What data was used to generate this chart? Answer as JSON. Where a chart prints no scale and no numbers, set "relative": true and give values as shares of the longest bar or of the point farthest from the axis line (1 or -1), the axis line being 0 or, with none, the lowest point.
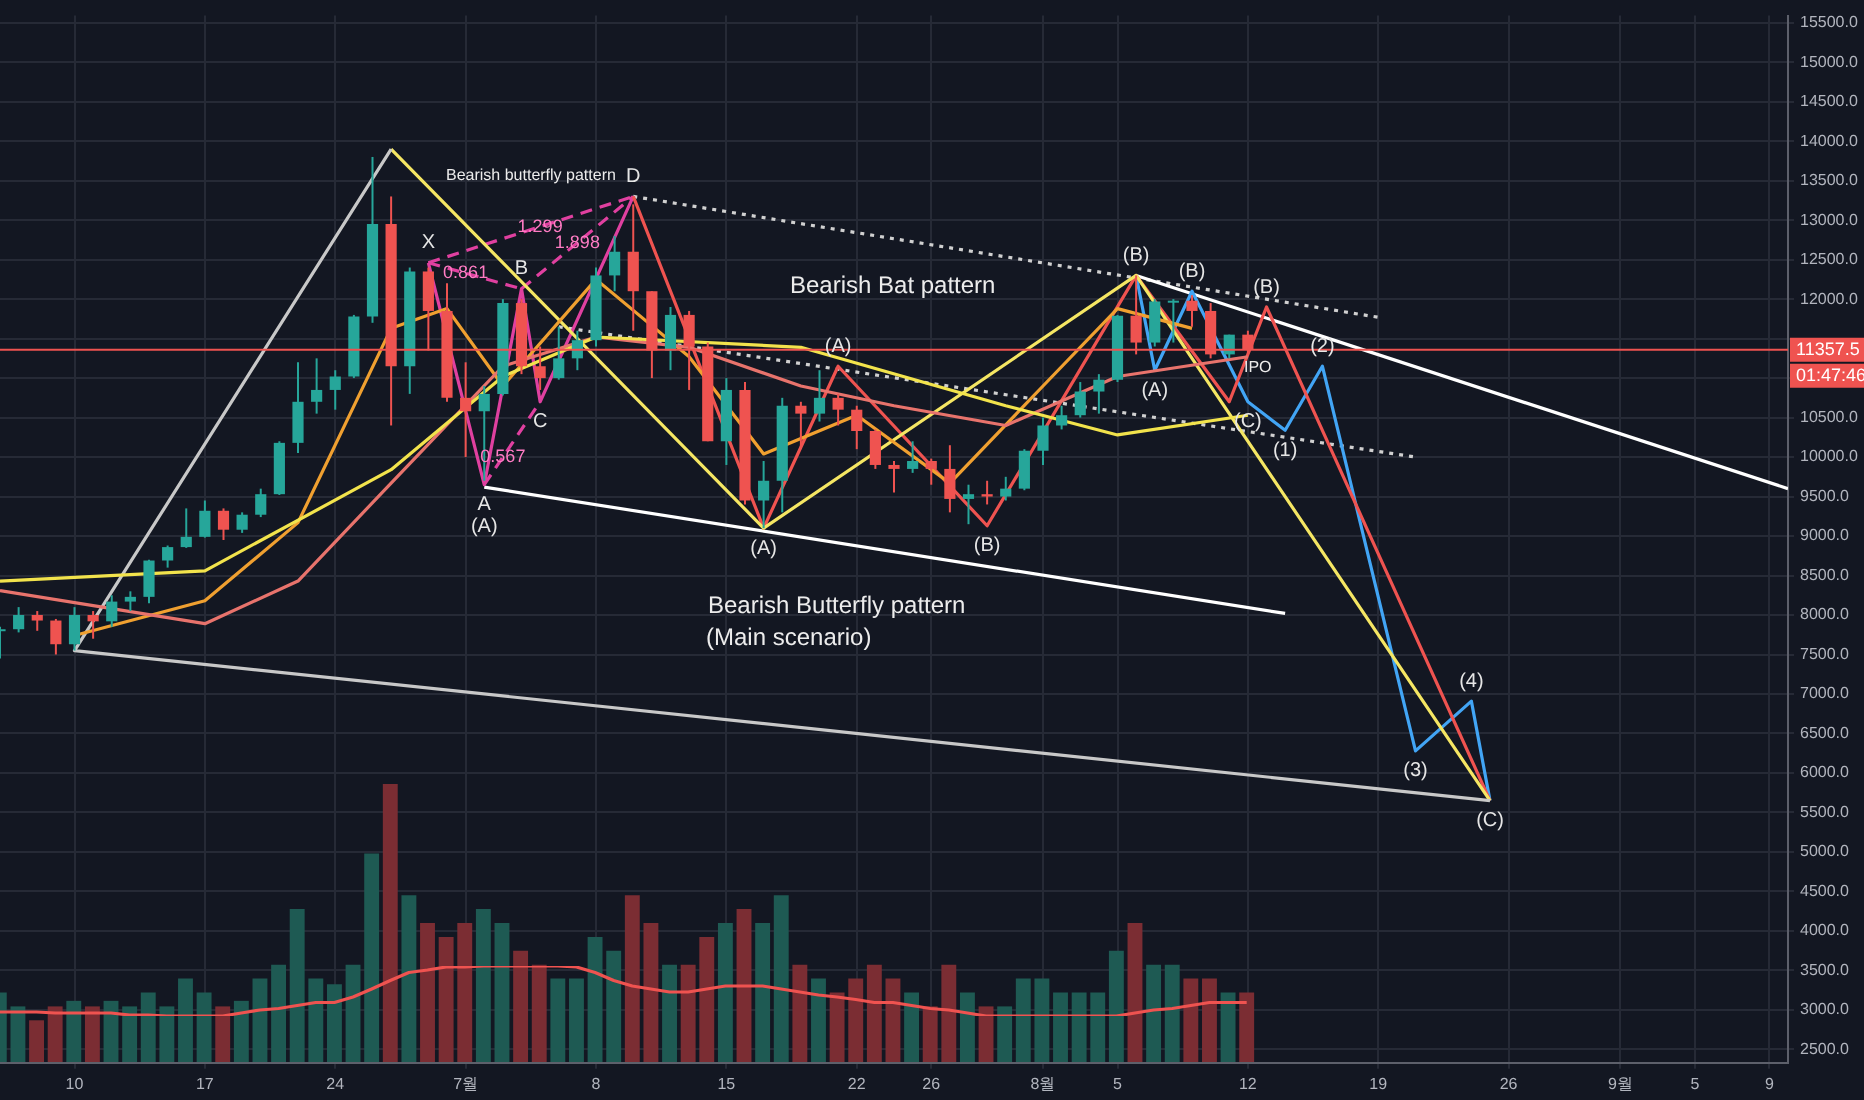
{
  "chart_data": [
    {
      "type": "candlestick",
      "x": [
        "--06-06",
        "--06-07",
        "--06-08",
        "--06-09",
        "--06-10",
        "--06-11",
        "--06-12",
        "--06-13",
        "--06-14",
        "--06-15",
        "--06-16",
        "--06-17",
        "--06-18",
        "--06-19",
        "--06-20",
        "--06-21",
        "--06-22",
        "--06-23",
        "--06-24",
        "--06-25",
        "--06-26",
        "--06-27",
        "--06-28",
        "--06-29",
        "--06-30",
        "--07-01",
        "--07-02",
        "--07-03",
        "--07-04",
        "--07-05",
        "--07-06",
        "--07-07",
        "--07-08",
        "--07-09",
        "--07-10",
        "--07-11",
        "--07-12",
        "--07-13",
        "--07-14",
        "--07-15",
        "--07-16",
        "--07-17",
        "--07-18",
        "--07-19",
        "--07-20",
        "--07-21",
        "--07-22",
        "--07-23",
        "--07-24",
        "--07-25",
        "--07-26",
        "--07-27",
        "--07-28",
        "--07-29",
        "--07-30",
        "--07-31",
        "--08-01",
        "--08-02",
        "--08-03",
        "--08-04",
        "--08-05",
        "--08-06",
        "--08-07",
        "--08-08",
        "--08-09",
        "--08-10",
        "--08-11",
        "--08-12"
      ],
      "ohlc": [
        [
          7800,
          7850,
          7450,
          7820
        ],
        [
          7820,
          8100,
          7780,
          8000
        ],
        [
          8000,
          8050,
          7800,
          7930
        ],
        [
          7930,
          7950,
          7500,
          7630
        ],
        [
          7630,
          8100,
          7550,
          8000
        ],
        [
          8000,
          8050,
          7700,
          7920
        ],
        [
          7920,
          8250,
          7850,
          8170
        ],
        [
          8170,
          8300,
          8050,
          8230
        ],
        [
          8230,
          8700,
          8150,
          8690
        ],
        [
          8690,
          8880,
          8600,
          8860
        ],
        [
          8860,
          9350,
          8850,
          8990
        ],
        [
          8990,
          9450,
          8980,
          9320
        ],
        [
          9320,
          9350,
          8950,
          9080
        ],
        [
          9080,
          9300,
          9040,
          9270
        ],
        [
          9270,
          9600,
          9240,
          9530
        ],
        [
          9530,
          10200,
          9520,
          10180
        ],
        [
          10180,
          11200,
          10050,
          10700
        ],
        [
          10700,
          11250,
          10550,
          10850
        ],
        [
          10850,
          11100,
          10600,
          11020
        ],
        [
          11020,
          11800,
          11000,
          11780
        ],
        [
          11780,
          13800,
          11700,
          12950
        ],
        [
          12950,
          13300,
          10400,
          11150
        ],
        [
          11150,
          12400,
          10800,
          12350
        ],
        [
          12350,
          12400,
          11350,
          11850
        ],
        [
          11850,
          12200,
          10700,
          10750
        ],
        [
          10750,
          11200,
          10000,
          10580
        ],
        [
          10580,
          10900,
          9700,
          10800
        ],
        [
          10800,
          12000,
          10780,
          11950
        ],
        [
          11950,
          12000,
          11050,
          11150
        ],
        [
          11150,
          11400,
          10850,
          11000
        ],
        [
          11000,
          11650,
          10980,
          11250
        ],
        [
          11250,
          11600,
          11100,
          11480
        ],
        [
          11480,
          12400,
          11400,
          12300
        ],
        [
          12300,
          12800,
          12100,
          12600
        ],
        [
          12600,
          13200,
          11600,
          12100
        ],
        [
          12100,
          12100,
          11000,
          11350
        ],
        [
          11350,
          11900,
          11100,
          11800
        ],
        [
          11800,
          11850,
          10850,
          11400
        ],
        [
          11400,
          11450,
          10200,
          10200
        ],
        [
          10200,
          11000,
          9900,
          10850
        ],
        [
          10850,
          10950,
          9400,
          9450
        ],
        [
          9450,
          9950,
          9100,
          9700
        ],
        [
          9700,
          10750,
          9300,
          10650
        ],
        [
          10650,
          10700,
          10100,
          10550
        ],
        [
          10550,
          11100,
          10450,
          10750
        ],
        [
          10750,
          10800,
          10400,
          10600
        ],
        [
          10600,
          10650,
          10100,
          10330
        ],
        [
          10330,
          10350,
          9850,
          9900
        ],
        [
          9900,
          9950,
          9550,
          9850
        ],
        [
          9850,
          10200,
          9800,
          9950
        ],
        [
          9950,
          9980,
          9650,
          9850
        ],
        [
          9850,
          10150,
          9300,
          9470
        ],
        [
          9470,
          9650,
          9150,
          9530
        ],
        [
          9530,
          9700,
          9400,
          9500
        ],
        [
          9500,
          9750,
          9450,
          9600
        ],
        [
          9600,
          10100,
          9580,
          10080
        ],
        [
          10080,
          10500,
          9900,
          10400
        ],
        [
          10400,
          10650,
          10350,
          10530
        ],
        [
          10530,
          10950,
          10500,
          10830
        ],
        [
          10830,
          11050,
          10550,
          10980
        ],
        [
          10980,
          11800,
          10950,
          11790
        ],
        [
          11790,
          12300,
          11300,
          11450
        ],
        [
          11450,
          12000,
          11400,
          11970
        ],
        [
          11970,
          12000,
          11450,
          11980
        ],
        [
          11980,
          12050,
          11650,
          11850
        ],
        [
          11850,
          11950,
          11250,
          11300
        ],
        [
          11300,
          11550,
          11250,
          11550
        ],
        [
          11550,
          11600,
          11300,
          11357.5
        ]
      ],
      "colors": [
        "#26a69a",
        "#26a69a",
        "#ef5350",
        "#ef5350",
        "#26a69a",
        "#ef5350",
        "#26a69a",
        "#26a69a",
        "#26a69a",
        "#26a69a",
        "#26a69a",
        "#26a69a",
        "#ef5350",
        "#26a69a",
        "#26a69a",
        "#26a69a",
        "#26a69a",
        "#26a69a",
        "#26a69a",
        "#26a69a",
        "#26a69a",
        "#ef5350",
        "#26a69a",
        "#ef5350",
        "#ef5350",
        "#ef5350",
        "#26a69a",
        "#26a69a",
        "#ef5350",
        "#ef5350",
        "#26a69a",
        "#26a69a",
        "#26a69a",
        "#26a69a",
        "#ef5350",
        "#ef5350",
        "#26a69a",
        "#ef5350",
        "#ef5350",
        "#26a69a",
        "#ef5350",
        "#26a69a",
        "#26a69a",
        "#ef5350",
        "#26a69a",
        "#ef5350",
        "#ef5350",
        "#ef5350",
        "#ef5350",
        "#26a69a",
        "#ef5350",
        "#ef5350",
        "#26a69a",
        "#ef5350",
        "#26a69a",
        "#26a69a",
        "#26a69a",
        "#26a69a",
        "#26a69a",
        "#26a69a",
        "#26a69a",
        "#ef5350",
        "#26a69a",
        "#26a69a",
        "#ef5350",
        "#ef5350",
        "#26a69a",
        "#ef5350"
      ],
      "series": [
        {
          "type": "line",
          "color": "#f2e34c",
          "x": [
            "--06-06",
            "--06-17",
            "--06-27",
            "--07-03",
            "--07-08",
            "--07-19",
            "--07-30",
            "--08-05",
            "--08-12"
          ],
          "values": [
            8430,
            8560,
            9840,
            11020,
            11520,
            11390,
            10650,
            10280,
            10530
          ]
        },
        {
          "type": "line",
          "color": "#e8736c",
          "x": [
            "--06-06",
            "--06-17",
            "--06-22",
            "--06-27",
            "--07-03",
            "--07-08",
            "--07-13",
            "--07-19",
            "--07-24",
            "--07-30",
            "--08-05",
            "--08-12"
          ],
          "values": [
            8310,
            7890,
            8430,
            9670,
            11150,
            11520,
            11390,
            10900,
            10650,
            10400,
            11020,
            11270
          ]
        },
        {
          "type": "line",
          "color": "#f0a030",
          "x": [
            "--06-10",
            "--06-17",
            "--06-22",
            "--06-27",
            "--06-30",
            "--07-03",
            "--07-08",
            "--07-13",
            "--07-17",
            "--07-22",
            "--07-27",
            "--08-01",
            "--08-05",
            "--08-09"
          ],
          "values": [
            7740,
            8180,
            9170,
            11630,
            11880,
            10900,
            12250,
            11270,
            10040,
            10530,
            9670,
            10900,
            11880,
            11630
          ]
        },
        {
          "type": "line",
          "color": "#c8c8c8",
          "x": [
            "--06-27",
            "--06-10",
            "--08-25"
          ],
          "values": [
            13900,
            7550,
            5650
          ]
        },
        {
          "type": "line",
          "color": "#f5e663",
          "x": [
            "--06-27",
            "--07-17",
            "--08-06",
            "--08-25"
          ],
          "values": [
            13900,
            9100,
            12300,
            5650
          ]
        },
        {
          "type": "line",
          "color": "#ef5350",
          "x": [
            "--07-10",
            "--07-17",
            "--07-21",
            "--07-29",
            "--08-06",
            "--08-11",
            "--08-13",
            "--08-25"
          ],
          "values": [
            13300,
            9100,
            11150,
            9130,
            12300,
            10700,
            11900,
            5650
          ]
        },
        {
          "type": "line",
          "color": "#42a5f5",
          "x": [
            "--08-06",
            "--08-07",
            "--08-09",
            "--08-12",
            "--08-14",
            "--08-16",
            "--08-21",
            "--08-24",
            "--08-25"
          ],
          "values": [
            12300,
            11100,
            12100,
            10700,
            10340,
            11150,
            6280,
            6910,
            5650
          ]
        },
        {
          "type": "line",
          "color": "#e040a0",
          "x": [
            "--06-29",
            "--07-02",
            "--07-04",
            "--07-05",
            "--07-10"
          ],
          "values": [
            12460,
            9650,
            12130,
            10700,
            13300
          ]
        },
        {
          "type": "line",
          "color": "#e040a0",
          "line_style": "dashed",
          "x": [
            "--06-29",
            "--07-04"
          ],
          "values": [
            12460,
            12130
          ]
        },
        {
          "type": "line",
          "color": "#e040a0",
          "line_style": "dashed",
          "x": [
            "--06-29",
            "--07-10"
          ],
          "values": [
            12460,
            13300
          ]
        },
        {
          "type": "line",
          "color": "#e040a0",
          "line_style": "dashed",
          "x": [
            "--07-04",
            "--07-10"
          ],
          "values": [
            12130,
            13300
          ]
        },
        {
          "type": "line",
          "color": "#e040a0",
          "line_style": "dashed",
          "x": [
            "--07-02",
            "--07-05"
          ],
          "values": [
            9650,
            10700
          ]
        },
        {
          "type": "line",
          "color": "#ffffff",
          "x": [
            "--07-02",
            "--08-14"
          ],
          "values": [
            9620,
            8020
          ]
        },
        {
          "type": "line",
          "color": "#ffffff",
          "x": [
            "--08-06",
            "--09-10"
          ],
          "values": [
            12300,
            9600
          ]
        },
        {
          "type": "line",
          "color": "#d0d0d0",
          "line_style": "dotted",
          "x": [
            "--07-10",
            "--08-19"
          ],
          "values": [
            13300,
            11770
          ]
        },
        {
          "type": "line",
          "color": "#d0d0d0",
          "line_style": "dotted",
          "x": [
            "--07-06",
            "--08-21"
          ],
          "values": [
            11650,
            10000
          ]
        }
      ],
      "marker": "none",
      "xlim": [
        "--06-06",
        "--09-10"
      ],
      "xticks": [
        {
          "value": "--06-10",
          "label": "10"
        },
        {
          "value": "--06-17",
          "label": "17"
        },
        {
          "value": "--06-24",
          "label": "24"
        },
        {
          "value": "--07-01",
          "label": "7월"
        },
        {
          "value": "--07-08",
          "label": "8"
        },
        {
          "value": "--07-15",
          "label": "15"
        },
        {
          "value": "--07-22",
          "label": "22"
        },
        {
          "value": "--07-26",
          "label": "26"
        },
        {
          "value": "--08-01",
          "label": "8월"
        },
        {
          "value": "--08-05",
          "label": "5"
        },
        {
          "value": "--08-12",
          "label": "12"
        },
        {
          "value": "--08-19",
          "label": "19"
        },
        {
          "value": "--08-26",
          "label": "26"
        },
        {
          "value": "--09-01",
          "label": "9월"
        },
        {
          "value": "--09-05",
          "label": "5"
        },
        {
          "value": "--09-09",
          "label": "9"
        }
      ],
      "ylim": [
        2330,
        15590
      ],
      "yticks": [
        {
          "value": 2500,
          "label": "2500.0"
        },
        {
          "value": 3000,
          "label": "3000.0"
        },
        {
          "value": 3500,
          "label": "3500.0"
        },
        {
          "value": 4000,
          "label": "4000.0"
        },
        {
          "value": 4500,
          "label": "4500.0"
        },
        {
          "value": 5000,
          "label": "5000.0"
        },
        {
          "value": 5500,
          "label": "5500.0"
        },
        {
          "value": 6000,
          "label": "6000.0"
        },
        {
          "value": 6500,
          "label": "6500.0"
        },
        {
          "value": 7000,
          "label": "7000.0"
        },
        {
          "value": 7500,
          "label": "7500.0"
        },
        {
          "value": 8000,
          "label": "8000.0"
        },
        {
          "value": 8500,
          "label": "8500.0"
        },
        {
          "value": 9000,
          "label": "9000.0"
        },
        {
          "value": 9500,
          "label": "9500.0"
        },
        {
          "value": 10000,
          "label": "10000.0"
        },
        {
          "value": 10500,
          "label": "10500.0"
        },
        {
          "value": 11000,
          "label": null
        },
        {
          "value": 11500,
          "label": null
        },
        {
          "value": 12000,
          "label": "12000.0"
        },
        {
          "value": 12500,
          "label": "12500.0"
        },
        {
          "value": 13000,
          "label": "13000.0"
        },
        {
          "value": 13500,
          "label": "13500.0"
        },
        {
          "value": 14000,
          "label": "14000.0"
        },
        {
          "value": 14500,
          "label": "14500.0"
        },
        {
          "value": 15000,
          "label": "15000.0"
        },
        {
          "value": 15500,
          "label": "15500.0"
        }
      ],
      "grid": true,
      "ref_lines": [
        {
          "axis": "y",
          "value": 11357.5,
          "label": "11357.5",
          "color": "#ef5350"
        }
      ],
      "annotations": [
        "Bearish butterfly pattern",
        "Bearish Bat pattern",
        "Bearish Butterfly pattern",
        "(Main scenario)",
        "IPO",
        "01:47:46",
        {
          "text": "X",
          "x": "--06-29",
          "y": 12460
        },
        {
          "text": "0.861",
          "x": "--07-01",
          "y": 12328
        },
        {
          "text": "1.299",
          "x": "--07-05",
          "y": 12918
        },
        {
          "text": "1.898",
          "x": "--07-07",
          "y": 12715
        },
        {
          "text": "0.567",
          "x": "--07-03",
          "y": 10000
        },
        {
          "text": "B",
          "x": "--07-04",
          "y": 12130
        },
        {
          "text": "C",
          "x": "--07-05",
          "y": 10700
        },
        {
          "text": "D",
          "x": "--07-10",
          "y": 13300
        },
        {
          "text": "A",
          "x": "--07-02",
          "y": 9650
        },
        {
          "text": "(A)",
          "x": "--07-02",
          "y": 9650
        },
        {
          "text": "(A)",
          "x": "--07-17",
          "y": 9100
        },
        {
          "text": "(A)",
          "x": "--07-21",
          "y": 11150
        },
        {
          "text": "(B)",
          "x": "--07-29",
          "y": 9130
        },
        {
          "text": "(B)",
          "x": "--08-06",
          "y": 12300
        },
        {
          "text": "(B)",
          "x": "--08-09",
          "y": 12100
        },
        {
          "text": "(A)",
          "x": "--08-07",
          "y": 11100
        },
        {
          "text": "(B)",
          "x": "--08-13",
          "y": 11900
        },
        {
          "text": "(C)",
          "x": "--08-12",
          "y": 10700
        },
        {
          "text": "(1)",
          "x": "--08-14",
          "y": 10340
        },
        {
          "text": "(2)",
          "x": "--08-16",
          "y": 11150
        },
        {
          "text": "(3)",
          "x": "--08-21",
          "y": 6280
        },
        {
          "text": "(4)",
          "x": "--08-24",
          "y": 6910
        },
        {
          "text": "(C)",
          "x": "--08-25",
          "y": 5650
        }
      ]
    },
    {
      "type": "bar",
      "relative": true,
      "categories": [
        null,
        null,
        null,
        null,
        null,
        null,
        null,
        null,
        null,
        null,
        null,
        null,
        null,
        null,
        null,
        null,
        null,
        null,
        null,
        null,
        null,
        null,
        null,
        null,
        null,
        null,
        null,
        null,
        null,
        null,
        null,
        null,
        null,
        null,
        null,
        null,
        null,
        null,
        null,
        null,
        null,
        null,
        null,
        null,
        null,
        null,
        null,
        null,
        null,
        null,
        null,
        null,
        null,
        null,
        null,
        null,
        null,
        null,
        null,
        null,
        null,
        null,
        null,
        null,
        null,
        null,
        null,
        null
      ],
      "values": [
        0.25,
        0.2,
        0.15,
        0.2,
        0.22,
        0.2,
        0.22,
        0.2,
        0.25,
        0.2,
        0.3,
        0.25,
        0.2,
        0.22,
        0.3,
        0.35,
        0.55,
        0.3,
        0.28,
        0.35,
        0.75,
        1,
        0.6,
        0.5,
        0.45,
        0.5,
        0.55,
        0.5,
        0.4,
        0.35,
        0.3,
        0.3,
        0.45,
        0.4,
        0.6,
        0.5,
        0.35,
        0.35,
        0.45,
        0.5,
        0.55,
        0.5,
        0.6,
        0.35,
        0.3,
        0.25,
        0.3,
        0.35,
        0.3,
        0.25,
        0.2,
        0.35,
        0.25,
        0.2,
        0.2,
        0.3,
        0.3,
        0.25,
        0.25,
        0.25,
        0.4,
        0.5,
        0.35,
        0.35,
        0.3,
        0.3,
        0.25,
        0.25
      ],
      "colors": [
        "#1e5a53",
        "#1e5a53",
        "#7b2d33",
        "#7b2d33",
        "#1e5a53",
        "#7b2d33",
        "#1e5a53",
        "#1e5a53",
        "#1e5a53",
        "#1e5a53",
        "#1e5a53",
        "#1e5a53",
        "#7b2d33",
        "#1e5a53",
        "#1e5a53",
        "#1e5a53",
        "#1e5a53",
        "#1e5a53",
        "#1e5a53",
        "#1e5a53",
        "#1e5a53",
        "#7b2d33",
        "#1e5a53",
        "#7b2d33",
        "#7b2d33",
        "#7b2d33",
        "#1e5a53",
        "#1e5a53",
        "#7b2d33",
        "#7b2d33",
        "#1e5a53",
        "#1e5a53",
        "#1e5a53",
        "#1e5a53",
        "#7b2d33",
        "#7b2d33",
        "#1e5a53",
        "#7b2d33",
        "#7b2d33",
        "#1e5a53",
        "#7b2d33",
        "#1e5a53",
        "#1e5a53",
        "#7b2d33",
        "#1e5a53",
        "#7b2d33",
        "#7b2d33",
        "#7b2d33",
        "#7b2d33",
        "#1e5a53",
        "#7b2d33",
        "#7b2d33",
        "#1e5a53",
        "#7b2d33",
        "#1e5a53",
        "#1e5a53",
        "#1e5a53",
        "#1e5a53",
        "#1e5a53",
        "#1e5a53",
        "#1e5a53",
        "#7b2d33",
        "#1e5a53",
        "#1e5a53",
        "#7b2d33",
        "#7b2d33",
        "#1e5a53",
        "#7b2d33"
      ]
    },
    {
      "type": "line",
      "relative": true,
      "marker": "none",
      "categories": [
        null,
        null,
        null,
        null,
        null,
        null,
        null,
        null,
        null,
        null,
        null,
        null,
        null,
        null,
        null,
        null,
        null,
        null,
        null,
        null,
        null,
        null,
        null,
        null,
        null,
        null,
        null,
        null,
        null,
        null,
        null,
        null,
        null,
        null,
        null,
        null,
        null,
        null,
        null,
        null,
        null,
        null,
        null,
        null,
        null,
        null,
        null,
        null,
        null,
        null,
        null,
        null,
        null,
        null,
        null,
        null,
        null,
        null,
        null,
        null,
        null,
        null,
        null,
        null,
        null,
        null,
        null,
        null
      ],
      "series": [
        {
          "color": "#ef5350",
          "values": [
            0.08,
            0.08,
            0.08,
            0.06,
            0.06,
            0.06,
            0.06,
            0.02,
            0.02,
            0,
            0,
            0,
            0,
            0.06,
            0.12,
            0.15,
            0.21,
            0.27,
            0.27,
            0.38,
            0.54,
            0.71,
            0.87,
            0.92,
            0.98,
            0.98,
            1,
            1,
            1,
            1,
            1,
            0.98,
            0.87,
            0.71,
            0.6,
            0.54,
            0.48,
            0.48,
            0.54,
            0.6,
            0.6,
            0.6,
            0.54,
            0.48,
            0.42,
            0.38,
            0.33,
            0.27,
            0.27,
            0.21,
            0.15,
            0.12,
            0.06,
            0,
            0,
            0,
            0,
            0,
            0,
            0,
            0,
            0.06,
            0.12,
            0.15,
            0.21,
            0.27,
            0.27,
            0.27
          ]
        }
      ]
    }
  ]
}
